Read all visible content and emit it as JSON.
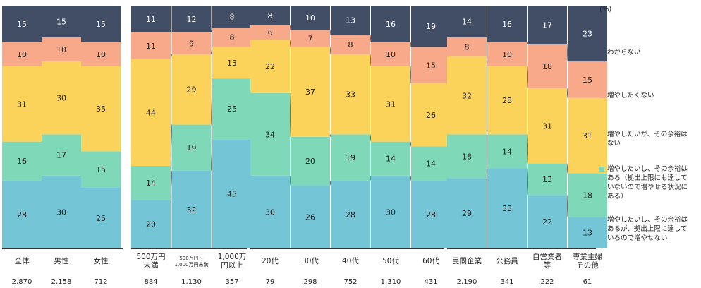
{
  "chart_data": {
    "type": "bar",
    "stacked": true,
    "unit": "(%)",
    "categories": [
      "全体",
      "男性",
      "女性",
      "500万円\n未満",
      "500万円～\n1,000万円未満",
      "1,000万\n円以上",
      "20代",
      "30代",
      "40代",
      "50代",
      "60代",
      "民間企業",
      "公務員",
      "自営業者\n等",
      "専業主婦\nその他"
    ],
    "counts": [
      "2,870",
      "2,158",
      "712",
      "884",
      "1,130",
      "357",
      "79",
      "298",
      "752",
      "1,310",
      "431",
      "2,190",
      "341",
      "222",
      "61"
    ],
    "groups": [
      [
        0,
        1,
        2
      ],
      [
        3,
        4,
        5
      ],
      [
        6,
        7,
        8,
        9,
        10
      ],
      [
        11,
        12,
        13,
        14
      ]
    ],
    "series": [
      {
        "name": "増やしたいし、その余裕はあるが、拠出上限に達しているので増やせない",
        "color": "#74c6d6",
        "values": [
          28,
          30,
          25,
          20,
          32,
          45,
          30,
          26,
          28,
          30,
          28,
          29,
          33,
          22,
          13
        ]
      },
      {
        "name": "増やしたいし、その余裕はある（拠出上限にも達していないので増やせる状況にある）",
        "color": "#7fd8b8",
        "values": [
          16,
          17,
          15,
          14,
          19,
          25,
          34,
          20,
          19,
          14,
          14,
          18,
          14,
          13,
          18
        ]
      },
      {
        "name": "増やしたいが、その余裕はない",
        "color": "#fbd35a",
        "values": [
          31,
          30,
          35,
          44,
          29,
          13,
          22,
          37,
          33,
          31,
          26,
          32,
          28,
          31,
          31
        ]
      },
      {
        "name": "増やしたくない",
        "color": "#f8a98a",
        "values": [
          10,
          10,
          10,
          11,
          9,
          8,
          6,
          7,
          8,
          10,
          15,
          8,
          10,
          18,
          15
        ]
      },
      {
        "name": "わからない",
        "color": "#414e66",
        "values": [
          15,
          15,
          15,
          11,
          12,
          8,
          8,
          10,
          13,
          16,
          19,
          14,
          16,
          17,
          23
        ]
      }
    ],
    "ylim": [
      0,
      100
    ]
  }
}
